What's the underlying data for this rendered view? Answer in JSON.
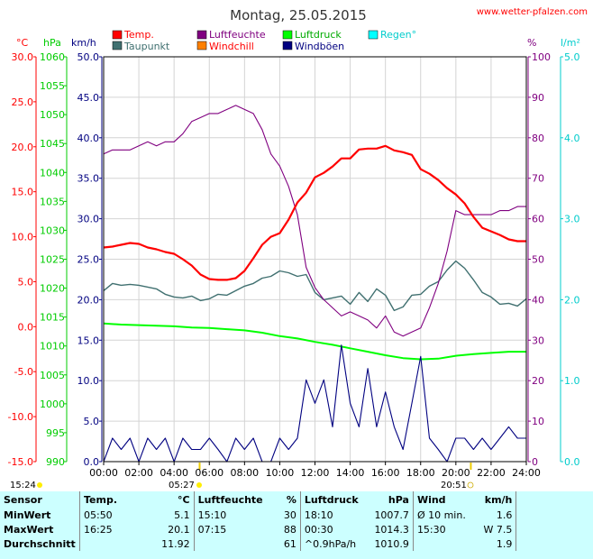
{
  "title": "Montag, 25.05.2015",
  "site": "www.wetter-pfalzen.com",
  "units": {
    "temp": "°C",
    "hpa": "hPa",
    "kmh": "km/h",
    "pct": "%",
    "rain": "l/m²"
  },
  "legend": [
    {
      "label": "Temp.",
      "color": "#ff0000"
    },
    {
      "label": "Luftfeuchte",
      "color": "#800080"
    },
    {
      "label": "Luftdruck",
      "color": "#00ff00"
    },
    {
      "label": "Regen°",
      "color": "#00ffff"
    },
    {
      "label": "Taupunkt",
      "color": "#407070"
    },
    {
      "label": "Windchill",
      "color": "#ff8000"
    },
    {
      "label": "Windböen",
      "color": "#000080"
    }
  ],
  "axes": {
    "temp_ticks": [
      "30.0",
      "25.0",
      "20.0",
      "15.0",
      "10.0",
      "5.0",
      "0.0",
      "-5.0",
      "-10.0",
      "-15.0"
    ],
    "hpa_ticks": [
      "1060",
      "1055",
      "1050",
      "1045",
      "1040",
      "1035",
      "1030",
      "1025",
      "1020",
      "1015",
      "1010",
      "1005",
      "1000",
      "995",
      "990"
    ],
    "wind_ticks": [
      "50.0",
      "45.0",
      "40.0",
      "35.0",
      "30.0",
      "25.0",
      "20.0",
      "15.0",
      "10.0",
      "5.0",
      "0.0"
    ],
    "pct_ticks": [
      "100",
      "90",
      "80",
      "70",
      "60",
      "50",
      "40",
      "30",
      "20",
      "10",
      "0"
    ],
    "rain_ticks": [
      "5.0",
      "4.0",
      "3.0",
      "2.0",
      "1.0",
      "0.0"
    ],
    "x_ticks": [
      "00:00",
      "02:00",
      "04:00",
      "06:00",
      "08:00",
      "10:00",
      "12:00",
      "14:00",
      "16:00",
      "18:00",
      "20:00",
      "22:00",
      "24:00"
    ]
  },
  "sun": {
    "rise_left": "15:24",
    "rise": "05:27",
    "set": "20:51"
  },
  "chart_data": {
    "type": "line",
    "title": "Montag, 25.05.2015",
    "x_range": [
      0,
      24
    ],
    "ranges": {
      "temp": [
        -15,
        30
      ],
      "pressure": [
        990,
        1060
      ],
      "wind": [
        0,
        50
      ],
      "humidity": [
        0,
        100
      ],
      "rain": [
        0,
        5
      ]
    },
    "series": [
      {
        "name": "Temp.",
        "axis": "temp",
        "color": "#ff0000",
        "step": 0.5,
        "y0": 0,
        "values": [
          8.8,
          8.9,
          9.1,
          9.3,
          9.2,
          8.8,
          8.6,
          8.3,
          8.1,
          7.5,
          6.8,
          5.8,
          5.3,
          5.2,
          5.2,
          5.4,
          6.2,
          7.6,
          9.1,
          10.0,
          10.4,
          11.9,
          13.8,
          14.9,
          16.6,
          17.1,
          17.8,
          18.7,
          18.7,
          19.7,
          19.8,
          19.8,
          20.1,
          19.6,
          19.4,
          19.1,
          17.5,
          17.0,
          16.3,
          15.4,
          14.7,
          13.7,
          12.2,
          11.0,
          10.6,
          10.2,
          9.7,
          9.5,
          9.5
        ]
      },
      {
        "name": "Taupunkt",
        "axis": "temp",
        "color": "#407070",
        "step": 0.5,
        "y0": 0,
        "values": [
          4.0,
          4.8,
          4.6,
          4.7,
          4.6,
          4.4,
          4.2,
          3.6,
          3.3,
          3.2,
          3.4,
          2.9,
          3.1,
          3.6,
          3.5,
          4.0,
          4.5,
          4.8,
          5.4,
          5.6,
          6.2,
          6.0,
          5.6,
          5.8,
          3.8,
          3.0,
          3.2,
          3.4,
          2.5,
          3.8,
          2.8,
          4.2,
          3.5,
          1.8,
          2.2,
          3.5,
          3.6,
          4.5,
          5.0,
          6.3,
          7.3,
          6.5,
          5.2,
          3.8,
          3.3,
          2.5,
          2.6,
          2.3,
          3.1
        ]
      },
      {
        "name": "Luftdruck",
        "axis": "pressure",
        "color": "#00ff00",
        "step": 1,
        "y0": 0,
        "values": [
          1013.9,
          1013.7,
          1013.6,
          1013.5,
          1013.4,
          1013.2,
          1013.1,
          1012.9,
          1012.7,
          1012.3,
          1011.7,
          1011.3,
          1010.7,
          1010.2,
          1009.6,
          1009.0,
          1008.4,
          1007.9,
          1007.7,
          1007.8,
          1008.3,
          1008.6,
          1008.8,
          1009.0,
          1009.0
        ]
      },
      {
        "name": "Luftfeuchte",
        "axis": "humidity",
        "color": "#800080",
        "step": 0.5,
        "y0": 0,
        "values": [
          76,
          77,
          77,
          77,
          78,
          79,
          78,
          79,
          79,
          81,
          84,
          85,
          86,
          86,
          87,
          88,
          87,
          86,
          82,
          76,
          73,
          68,
          61,
          48,
          43,
          40,
          38,
          36,
          37,
          36,
          35,
          33,
          36,
          32,
          31,
          32,
          33,
          38,
          44,
          52,
          62,
          61,
          61,
          61,
          61,
          62,
          62,
          63,
          63
        ]
      },
      {
        "name": "Windböen",
        "axis": "wind",
        "color": "#000080",
        "step": 0.5,
        "y0": 0,
        "values": [
          0,
          2.9,
          1.5,
          2.9,
          0,
          2.9,
          1.5,
          2.9,
          0,
          2.9,
          1.5,
          1.5,
          2.9,
          1.5,
          0,
          2.9,
          1.5,
          2.9,
          0,
          0,
          2.9,
          1.5,
          2.9,
          10.1,
          7.2,
          10.1,
          4.3,
          14.4,
          7.2,
          4.3,
          11.5,
          4.3,
          8.6,
          4.3,
          1.5,
          7.2,
          13.0,
          2.9,
          1.5,
          0,
          2.9,
          2.9,
          1.5,
          2.9,
          1.5,
          2.9,
          4.3,
          2.9,
          2.9
        ]
      }
    ]
  },
  "stats": {
    "headers": {
      "sensor": "Sensor",
      "temp": "Temp.",
      "temp_unit": "°C",
      "hum": "Luftfeuchte",
      "hum_unit": "%",
      "press": "Luftdruck",
      "press_unit": "hPa",
      "wind": "Wind",
      "wind_unit": "km/h"
    },
    "rows": [
      {
        "label": "MinWert",
        "t_time": "05:50",
        "t_val": "5.1",
        "h_time": "15:10",
        "h_val": "30",
        "p_time": "18:10",
        "p_val": "1007.7",
        "w_time": "Ø 10 min.",
        "w_val": "1.6"
      },
      {
        "label": "MaxWert",
        "t_time": "16:25",
        "t_val": "20.1",
        "h_time": "07:15",
        "h_val": "88",
        "p_time": "00:30",
        "p_val": "1014.3",
        "w_time": "15:30",
        "w_val": "W 7.5"
      },
      {
        "label": "Durchschnitt",
        "t_time": "",
        "t_val": "11.92",
        "h_time": "",
        "h_val": "61",
        "p_time": "^0.9hPa/h",
        "p_val": "1010.9",
        "w_time": "",
        "w_val": "1.9"
      }
    ]
  }
}
